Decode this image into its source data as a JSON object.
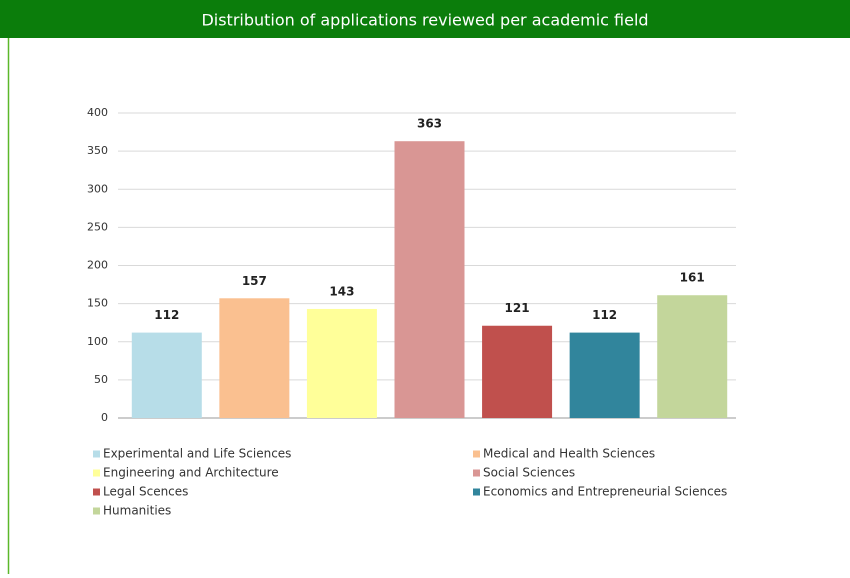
{
  "chart_data": {
    "type": "bar",
    "title": "Distribution of applications reviewed per academic field",
    "categories": [
      "Experimental and Life Sciences",
      "Medical and Health Sciences",
      "Engineering and Architecture",
      "Social Sciences",
      "Legal Scences",
      "Economics and Entrepreneurial Sciences",
      "Humanities"
    ],
    "values": [
      112,
      157,
      143,
      363,
      121,
      112,
      161
    ],
    "colors": [
      "#b7dde8",
      "#fac090",
      "#ffff99",
      "#d99694",
      "#c0504d",
      "#31859c",
      "#c3d69b"
    ],
    "ylim": [
      0,
      400
    ],
    "yticks": [
      0,
      50,
      100,
      150,
      200,
      250,
      300,
      350,
      400
    ],
    "grid": true,
    "legend": "bottom"
  }
}
